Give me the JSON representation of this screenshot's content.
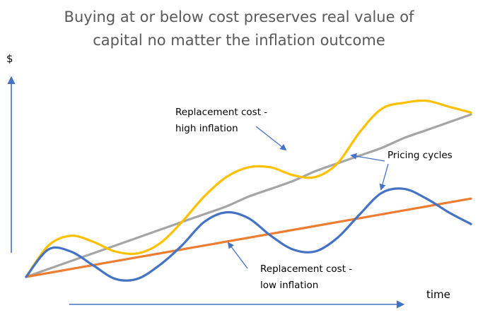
{
  "chart_data": {
    "type": "line",
    "title_lines": [
      "Buying at or below cost preserves real value of",
      "capital no matter the inflation outcome"
    ],
    "xlabel": "time",
    "ylabel": "$",
    "grid": false,
    "x": [
      0,
      5,
      10,
      15,
      20,
      25,
      30,
      35,
      40,
      45,
      50,
      55,
      60,
      65,
      70,
      75,
      80,
      85,
      90,
      95,
      100
    ],
    "xlim": [
      0,
      100
    ],
    "ylim": [
      0,
      100
    ],
    "series": [
      {
        "name": "Replacement cost - high inflation",
        "color": "#a5a5a5",
        "values": [
          0,
          4,
          8,
          12,
          16,
          20,
          24,
          28,
          32,
          36,
          41,
          45,
          49,
          54,
          58,
          62,
          66,
          71,
          75,
          79,
          83
        ]
      },
      {
        "name": "Replacement cost - low inflation",
        "color": "#ed7d31",
        "values": [
          0,
          2,
          4,
          6,
          8,
          10,
          12,
          14,
          16,
          18,
          20,
          22,
          24,
          26,
          28,
          30,
          32,
          34,
          36,
          38,
          40
        ]
      },
      {
        "name": "Pricing cycle (high inflation)",
        "color": "#ffc000",
        "values": [
          0,
          16,
          21,
          18,
          13,
          12,
          17,
          28,
          41,
          51,
          56,
          56,
          52,
          51,
          58,
          74,
          86,
          89,
          90,
          87,
          84
        ]
      },
      {
        "name": "Pricing cycle (low inflation)",
        "color": "#4472c4",
        "values": [
          0,
          14,
          13,
          6,
          -1,
          -1,
          6,
          16,
          28,
          33,
          30,
          21,
          14,
          13,
          20,
          32,
          43,
          45,
          40,
          33,
          27
        ]
      }
    ],
    "annotations": [
      {
        "id": "high",
        "lines": [
          "Replacement cost -",
          "high inflation"
        ],
        "points_to": "Replacement cost - high inflation"
      },
      {
        "id": "cycles",
        "lines": [
          "Pricing cycles"
        ],
        "points_to": [
          "Pricing cycle (high inflation)",
          "Pricing cycle (low inflation)"
        ]
      },
      {
        "id": "low",
        "lines": [
          "Replacement cost -",
          "low inflation"
        ],
        "points_to": "Replacement cost - low inflation"
      }
    ],
    "axis_color": "#4472c4"
  }
}
